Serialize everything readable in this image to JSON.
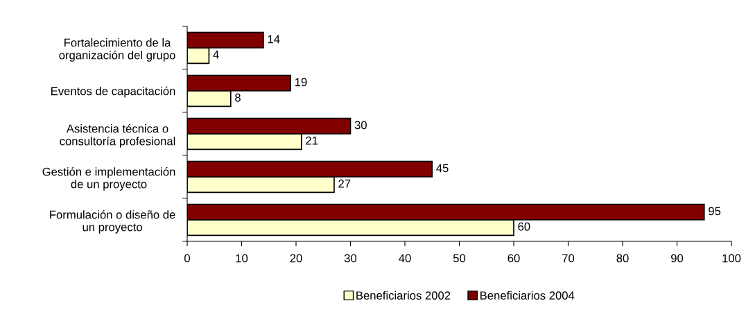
{
  "chart_data": {
    "type": "bar",
    "orientation": "horizontal",
    "categories": [
      "Fortalecimiento de la\norganización del grupo",
      "Eventos de capacitación",
      "Asistencia técnica o\nconsultoría profesional",
      "Gestión e implementación\nde un proyecto",
      "Formulación o diseño de\nun proyecto"
    ],
    "series": [
      {
        "name": "Beneficiarios 2002",
        "color": "#ffffcc",
        "values": [
          4,
          8,
          21,
          27,
          60
        ]
      },
      {
        "name": "Beneficiarios 2004",
        "color": "#800000",
        "values": [
          14,
          19,
          30,
          45,
          95
        ]
      }
    ],
    "xlim": [
      0,
      100
    ],
    "xticks": [
      0,
      10,
      20,
      30,
      40,
      50,
      60,
      70,
      80,
      90,
      100
    ],
    "data_labels": true,
    "legend": "bottom",
    "grid": false
  }
}
